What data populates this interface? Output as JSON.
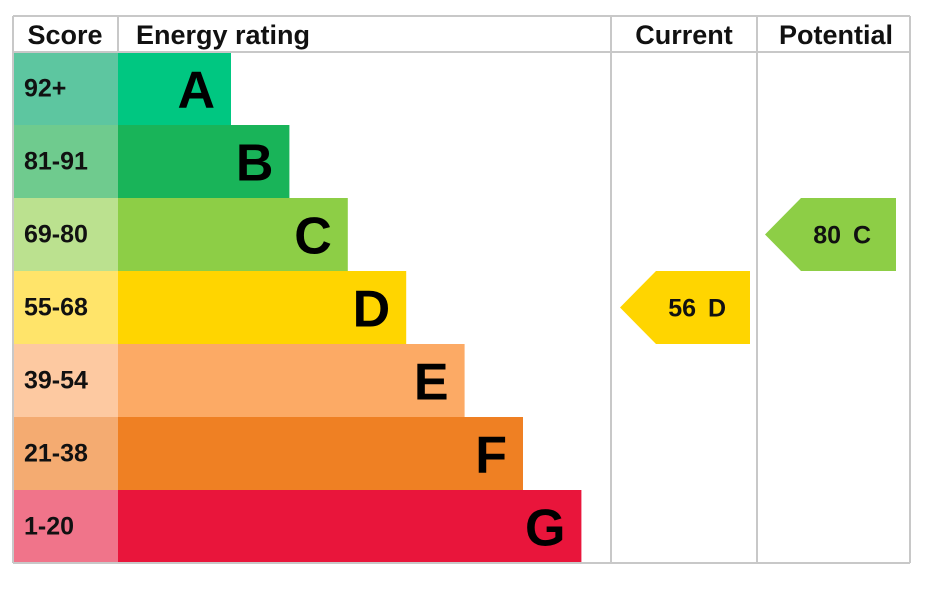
{
  "header": {
    "score": "Score",
    "rating": "Energy rating",
    "current": "Current",
    "potential": "Potential"
  },
  "bands": [
    {
      "score": "92+",
      "letter": "A",
      "color": "#00c781",
      "score_color": "#5dc6a0"
    },
    {
      "score": "81-91",
      "letter": "B",
      "color": "#19b459",
      "score_color": "#6fcb8e"
    },
    {
      "score": "69-80",
      "letter": "C",
      "color": "#8dce46",
      "score_color": "#bbe18f"
    },
    {
      "score": "55-68",
      "letter": "D",
      "color": "#ffd500",
      "score_color": "#ffe46a"
    },
    {
      "score": "39-54",
      "letter": "E",
      "color": "#fcaa65",
      "score_color": "#fdc9a1"
    },
    {
      "score": "21-38",
      "letter": "F",
      "color": "#ef8023",
      "score_color": "#f4ab71"
    },
    {
      "score": "1-20",
      "letter": "G",
      "color": "#e9153b",
      "score_color": "#f0748a"
    }
  ],
  "current": {
    "value": 56,
    "letter": "D"
  },
  "potential": {
    "value": 80,
    "letter": "C"
  }
}
